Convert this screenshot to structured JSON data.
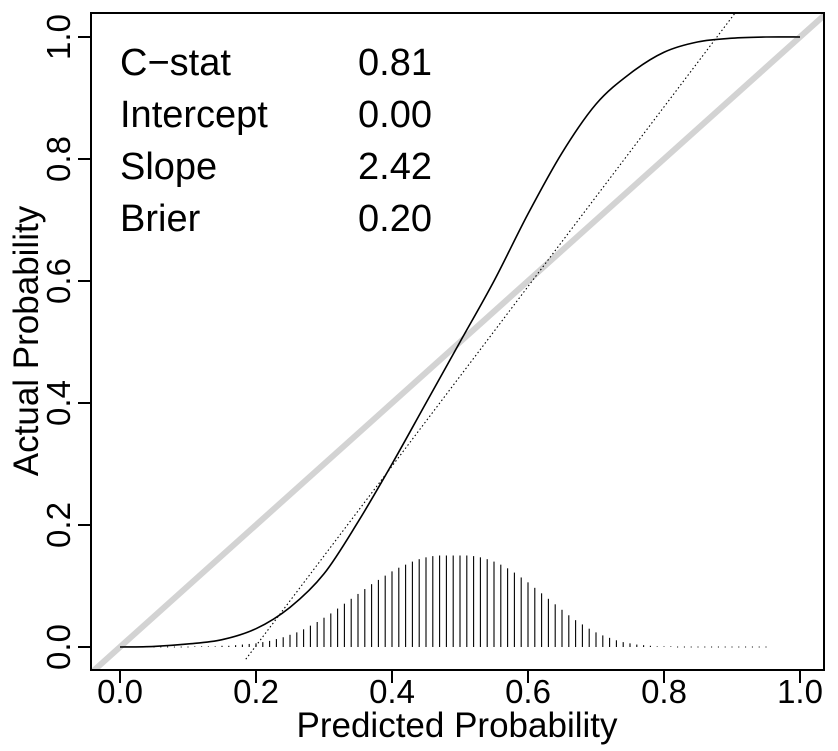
{
  "chart_data": {
    "type": "line",
    "title": "",
    "xlabel": "Predicted Probability",
    "ylabel": "Actual Probability",
    "xlim": [
      0.0,
      1.0
    ],
    "ylim": [
      0.0,
      1.0
    ],
    "x_ticks": [
      "0.0",
      "0.2",
      "0.4",
      "0.6",
      "0.8",
      "1.0"
    ],
    "y_ticks": [
      "0.0",
      "0.2",
      "0.4",
      "0.6",
      "0.8",
      "1.0"
    ],
    "grid": false,
    "legend": "none",
    "stats": [
      {
        "label": "C−stat",
        "value": "0.81"
      },
      {
        "label": "Intercept",
        "value": "0.00"
      },
      {
        "label": "Slope",
        "value": "2.42"
      },
      {
        "label": "Brier",
        "value": "0.20"
      }
    ],
    "series": [
      {
        "style": "diagonal",
        "color": "#d3d3d3",
        "x": [
          0.0,
          1.0
        ],
        "y": [
          0.0,
          1.0
        ]
      },
      {
        "style": "solid",
        "color": "#000000",
        "x": [
          0.0,
          0.05,
          0.1,
          0.15,
          0.2,
          0.25,
          0.3,
          0.35,
          0.4,
          0.45,
          0.5,
          0.55,
          0.6,
          0.65,
          0.7,
          0.75,
          0.8,
          0.85,
          0.9,
          0.95,
          1.0
        ],
        "y": [
          0.0,
          0.001,
          0.005,
          0.012,
          0.03,
          0.065,
          0.12,
          0.205,
          0.3,
          0.4,
          0.5,
          0.6,
          0.71,
          0.81,
          0.89,
          0.94,
          0.975,
          0.992,
          0.998,
          1.0,
          1.0
        ]
      },
      {
        "style": "dotted",
        "color": "#000000",
        "x": [
          0.185,
          0.905
        ],
        "y": [
          -0.02,
          1.04
        ]
      }
    ],
    "histogram": {
      "x": [
        0.03,
        0.04,
        0.05,
        0.06,
        0.07,
        0.08,
        0.09,
        0.1,
        0.11,
        0.12,
        0.13,
        0.14,
        0.15,
        0.16,
        0.17,
        0.18,
        0.19,
        0.2,
        0.21,
        0.22,
        0.23,
        0.24,
        0.25,
        0.26,
        0.27,
        0.28,
        0.29,
        0.3,
        0.31,
        0.32,
        0.33,
        0.34,
        0.35,
        0.36,
        0.37,
        0.38,
        0.39,
        0.4,
        0.41,
        0.42,
        0.43,
        0.44,
        0.45,
        0.46,
        0.47,
        0.48,
        0.49,
        0.5,
        0.51,
        0.52,
        0.53,
        0.54,
        0.55,
        0.56,
        0.57,
        0.58,
        0.59,
        0.6,
        0.61,
        0.62,
        0.63,
        0.64,
        0.65,
        0.66,
        0.67,
        0.68,
        0.69,
        0.7,
        0.71,
        0.72,
        0.73,
        0.74,
        0.75,
        0.76,
        0.77,
        0.78,
        0.79,
        0.8,
        0.81,
        0.82,
        0.83,
        0.84,
        0.85,
        0.86,
        0.87,
        0.88,
        0.89,
        0.9,
        0.91,
        0.92,
        0.93,
        0.94,
        0.95
      ],
      "y": [
        0.0,
        0.0,
        0.0,
        0.0,
        0.0,
        0.0,
        0.0,
        0.0,
        0.001,
        0.001,
        0.001,
        0.001,
        0.002,
        0.002,
        0.003,
        0.004,
        0.005,
        0.006,
        0.008,
        0.01,
        0.013,
        0.016,
        0.02,
        0.024,
        0.029,
        0.035,
        0.041,
        0.048,
        0.055,
        0.063,
        0.071,
        0.079,
        0.087,
        0.095,
        0.103,
        0.11,
        0.117,
        0.124,
        0.13,
        0.135,
        0.14,
        0.144,
        0.147,
        0.149,
        0.15,
        0.15,
        0.15,
        0.15,
        0.15,
        0.149,
        0.147,
        0.144,
        0.14,
        0.135,
        0.129,
        0.122,
        0.114,
        0.106,
        0.097,
        0.088,
        0.079,
        0.07,
        0.061,
        0.052,
        0.044,
        0.037,
        0.03,
        0.024,
        0.019,
        0.015,
        0.011,
        0.008,
        0.006,
        0.004,
        0.003,
        0.002,
        0.001,
        0.001,
        0.001,
        0.0,
        0.0,
        0.0,
        0.0,
        0.0,
        0.0,
        0.0,
        0.0,
        0.0,
        0.0,
        0.0,
        0.0,
        0.0,
        0.0
      ]
    }
  }
}
